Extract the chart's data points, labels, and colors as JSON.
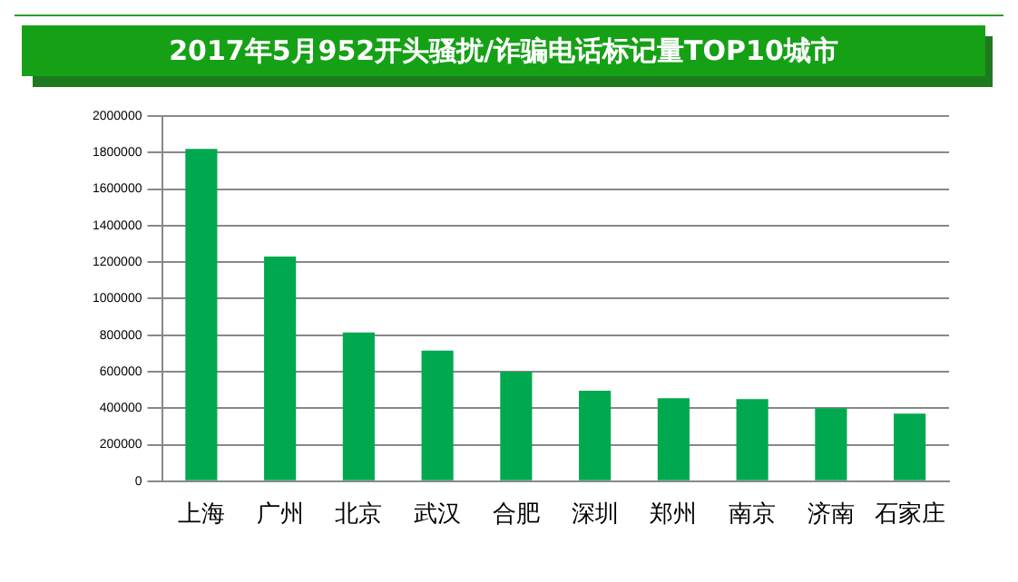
{
  "chart_data": {
    "type": "bar",
    "title": "2017年5月952开头骚扰/诈骗电话标记量TOP10城市",
    "categories": [
      "上海",
      "广州",
      "北京",
      "武汉",
      "合肥",
      "深圳",
      "郑州",
      "南京",
      "济南",
      "石家庄"
    ],
    "values": [
      1820000,
      1230000,
      815000,
      715000,
      600000,
      495000,
      455000,
      450000,
      400000,
      370000
    ],
    "color": "#00a84f",
    "ylim": [
      0,
      2000000
    ],
    "yticks": [
      0,
      200000,
      400000,
      600000,
      800000,
      1000000,
      1200000,
      1400000,
      1600000,
      1800000,
      2000000
    ],
    "grid": "y",
    "legend": false
  }
}
